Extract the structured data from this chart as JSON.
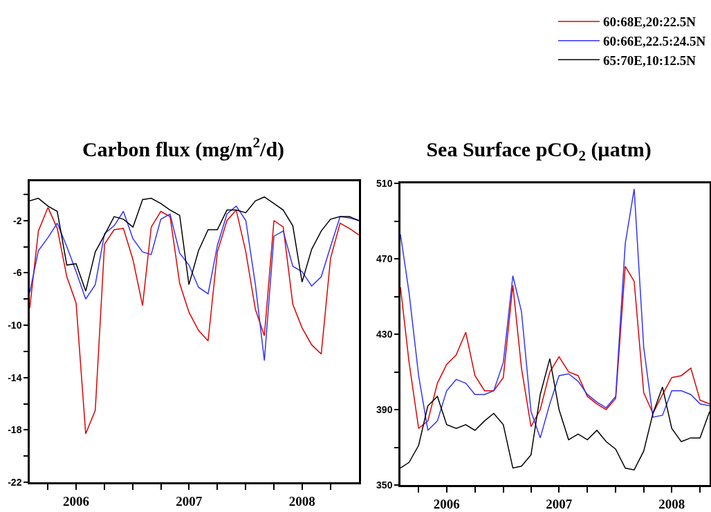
{
  "chart_data": [
    {
      "type": "line",
      "title": "Carbon flux (mg/m$^{2}$/d)",
      "x": [
        "2006-02",
        "2006-03",
        "2006-04",
        "2006-05",
        "2006-06",
        "2006-07",
        "2006-08",
        "2006-09",
        "2006-10",
        "2006-11",
        "2006-12",
        "2007-01",
        "2007-02",
        "2007-03",
        "2007-04",
        "2007-05",
        "2007-06",
        "2007-07",
        "2007-08",
        "2007-09",
        "2007-10",
        "2007-11",
        "2007-12",
        "2008-01",
        "2008-02",
        "2008-03",
        "2008-04",
        "2008-05",
        "2008-06",
        "2008-07",
        "2008-08",
        "2008-09",
        "2008-10",
        "2008-11",
        "2008-12",
        "2009-01"
      ],
      "series": [
        {
          "color": "#dd0000",
          "values": [
            -8.7,
            -2.8,
            -1.0,
            -2.6,
            -6.3,
            -8.3,
            -18.3,
            -16.5,
            -3.8,
            -2.7,
            -2.6,
            -5.0,
            -8.5,
            -2.5,
            -1.3,
            -1.7,
            -6.8,
            -9.0,
            -10.4,
            -11.2,
            -4.4,
            -2.0,
            -1.2,
            -4.4,
            -8.8,
            -10.8,
            -2.0,
            -2.5,
            -8.4,
            -10.2,
            -11.5,
            -12.2,
            -4.9,
            -2.2,
            -2.6,
            -3.1
          ]
        },
        {
          "color": "#3333ff",
          "values": [
            -7.5,
            -4.3,
            -3.3,
            -2.2,
            -4.0,
            -5.9,
            -8.0,
            -6.9,
            -3.0,
            -2.4,
            -1.3,
            -3.4,
            -4.4,
            -4.6,
            -1.9,
            -1.5,
            -4.5,
            -5.4,
            -7.1,
            -7.6,
            -3.9,
            -1.5,
            -0.9,
            -2.0,
            -6.9,
            -12.7,
            -3.2,
            -2.8,
            -5.5,
            -5.9,
            -7.0,
            -6.3,
            -4.0,
            -1.7,
            -1.8,
            -2.0
          ]
        },
        {
          "color": "#000000",
          "values": [
            -0.5,
            -0.3,
            -0.9,
            -1.3,
            -5.4,
            -5.3,
            -7.4,
            -4.4,
            -3.1,
            -1.7,
            -1.9,
            -2.5,
            -0.4,
            -0.3,
            -0.7,
            -1.2,
            -1.6,
            -6.9,
            -4.3,
            -2.7,
            -2.7,
            -1.2,
            -1.2,
            -1.4,
            -0.5,
            -0.2,
            -0.7,
            -1.2,
            -2.4,
            -6.7,
            -4.2,
            -2.8,
            -1.9,
            -1.7,
            -1.7,
            -2.0
          ]
        }
      ],
      "xlim": [
        "2006-02",
        "2009-01"
      ],
      "xticks": [
        {
          "value": "2006-04",
          "label": null
        },
        {
          "value": "2006-07",
          "label": "2006"
        },
        {
          "value": "2006-10",
          "label": null
        },
        {
          "value": "2007-01",
          "label": null
        },
        {
          "value": "2007-04",
          "label": null
        },
        {
          "value": "2007-07",
          "label": "2007"
        },
        {
          "value": "2007-10",
          "label": null
        },
        {
          "value": "2008-01",
          "label": null
        },
        {
          "value": "2008-04",
          "label": null
        },
        {
          "value": "2008-07",
          "label": "2008"
        },
        {
          "value": "2008-10",
          "label": null
        }
      ],
      "ylim": [
        -22,
        1
      ],
      "yticks": [
        -22,
        {
          "value": -20,
          "label": null
        },
        -18,
        {
          "value": -16,
          "label": null
        },
        -14,
        {
          "value": -12,
          "label": null
        },
        -10,
        {
          "value": -8,
          "label": null
        },
        -6,
        {
          "value": -4,
          "label": null
        },
        -2,
        {
          "value": 0,
          "label": null
        }
      ],
      "grid": false
    },
    {
      "type": "line",
      "title": "Sea Surface pCO$_{2}$ (µatm)",
      "x": [
        "2006-02",
        "2006-03",
        "2006-04",
        "2006-05",
        "2006-06",
        "2006-07",
        "2006-08",
        "2006-09",
        "2006-10",
        "2006-11",
        "2006-12",
        "2007-01",
        "2007-02",
        "2007-03",
        "2007-04",
        "2007-05",
        "2007-06",
        "2007-07",
        "2007-08",
        "2007-09",
        "2007-10",
        "2007-11",
        "2007-12",
        "2008-01",
        "2008-02",
        "2008-03",
        "2008-04",
        "2008-05",
        "2008-06",
        "2008-07",
        "2008-08",
        "2008-09",
        "2008-10",
        "2008-11"
      ],
      "series": [
        {
          "name": "60:68E,20:22.5N",
          "color": "#dd0000",
          "values": [
            455,
            415,
            380,
            384,
            404,
            414,
            419,
            431,
            408,
            400,
            400,
            407,
            456,
            412,
            381,
            390,
            410,
            418,
            410,
            408,
            397,
            393,
            390,
            396,
            466,
            458,
            399,
            388,
            398,
            407,
            408,
            412,
            395,
            393
          ]
        },
        {
          "name": "60:66E,22.5:24.5N",
          "color": "#3333ff",
          "values": [
            483,
            452,
            408,
            379,
            384,
            400,
            406,
            404,
            398,
            398,
            400,
            415,
            461,
            442,
            389,
            375,
            393,
            408,
            409,
            405,
            398,
            394,
            391,
            397,
            478,
            507,
            423,
            386,
            387,
            400,
            400,
            398,
            393,
            392
          ]
        },
        {
          "name": "65:70E,10:12.5N",
          "color": "#000000",
          "values": [
            359,
            362,
            371,
            392,
            397,
            382,
            380,
            382,
            379,
            384,
            388,
            382,
            359,
            360,
            366,
            398,
            417,
            390,
            374,
            377,
            374,
            379,
            373,
            369,
            359,
            358,
            368,
            388,
            402,
            380,
            373,
            375,
            375,
            389
          ]
        }
      ],
      "xlim": [
        "2006-02",
        "2008-11"
      ],
      "xticks": [
        {
          "value": "2006-04",
          "label": null
        },
        {
          "value": "2006-07",
          "label": "2006"
        },
        {
          "value": "2006-10",
          "label": null
        },
        {
          "value": "2007-01",
          "label": null
        },
        {
          "value": "2007-04",
          "label": null
        },
        {
          "value": "2007-07",
          "label": "2007"
        },
        {
          "value": "2007-10",
          "label": null
        },
        {
          "value": "2008-01",
          "label": null
        },
        {
          "value": "2008-04",
          "label": null
        },
        {
          "value": "2008-07",
          "label": "2008"
        },
        {
          "value": "2008-10",
          "label": null
        }
      ],
      "ylim": [
        350,
        510
      ],
      "yticks": [
        350,
        {
          "value": 370,
          "label": null
        },
        390,
        {
          "value": 410,
          "label": null
        },
        430,
        {
          "value": 450,
          "label": null
        },
        470,
        {
          "value": 490,
          "label": null
        },
        510
      ],
      "grid": false,
      "legend": "top right"
    }
  ]
}
